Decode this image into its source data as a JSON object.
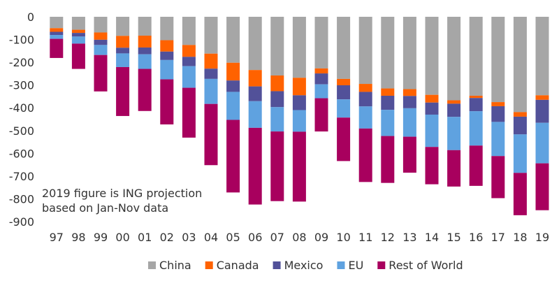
{
  "chart_data": {
    "type": "bar",
    "stacked": true,
    "categories": [
      "97",
      "98",
      "99",
      "00",
      "01",
      "02",
      "03",
      "04",
      "05",
      "06",
      "07",
      "08",
      "09",
      "10",
      "11",
      "12",
      "13",
      "14",
      "15",
      "16",
      "17",
      "18",
      "19"
    ],
    "series": [
      {
        "name": "China",
        "color": "#a6a6a6",
        "values": [
          -50,
          -57,
          -69,
          -84,
          -83,
          -103,
          -124,
          -162,
          -202,
          -234,
          -258,
          -268,
          -227,
          -273,
          -295,
          -315,
          -318,
          -343,
          -367,
          -347,
          -375,
          -419,
          -345
        ]
      },
      {
        "name": "Canada",
        "color": "#ff6200",
        "values": [
          -16,
          -14,
          -32,
          -52,
          -52,
          -50,
          -52,
          -66,
          -78,
          -72,
          -69,
          -77,
          -22,
          -28,
          -35,
          -32,
          -30,
          -34,
          -15,
          -10,
          -18,
          -20,
          -20
        ]
      },
      {
        "name": "Mexico",
        "color": "#525199",
        "values": [
          -14,
          -16,
          -23,
          -25,
          -30,
          -37,
          -41,
          -45,
          -50,
          -65,
          -70,
          -65,
          -48,
          -62,
          -64,
          -62,
          -54,
          -53,
          -58,
          -58,
          -69,
          -78,
          -101
        ]
      },
      {
        "name": "EU",
        "color": "#5fa2e0",
        "values": [
          -17,
          -31,
          -44,
          -60,
          -64,
          -85,
          -95,
          -110,
          -123,
          -117,
          -107,
          -95,
          -61,
          -80,
          -97,
          -115,
          -125,
          -142,
          -146,
          -151,
          -150,
          -169,
          -178
        ]
      },
      {
        "name": "Rest of World",
        "color": "#a8005e",
        "values": [
          -84,
          -111,
          -160,
          -215,
          -185,
          -198,
          -219,
          -269,
          -319,
          -337,
          -306,
          -307,
          -146,
          -191,
          -235,
          -206,
          -158,
          -164,
          -160,
          -177,
          -185,
          -186,
          -206
        ]
      }
    ],
    "ylim": [
      -900,
      0
    ],
    "yticks": [
      0,
      -100,
      -200,
      -300,
      -400,
      -500,
      -600,
      -700,
      -800,
      -900
    ],
    "ytick_labels": [
      "0",
      "-100",
      "-200",
      "-300",
      "-400",
      "-500",
      "-600",
      "-700",
      "-800",
      "-900"
    ],
    "grid": false,
    "legend_position": "bottom",
    "title": "",
    "xlabel": "",
    "ylabel": "",
    "annotation": [
      "2019 figure is ING projection",
      "based on Jan-Nov data"
    ]
  }
}
